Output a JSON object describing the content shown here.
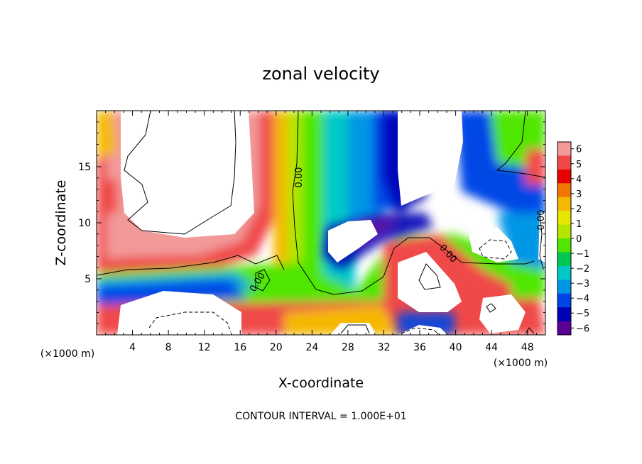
{
  "chart_data": {
    "type": "heatmap",
    "title": "zonal velocity",
    "xlabel": "X-coordinate",
    "ylabel": "Z-coordinate",
    "x_unit": "(×1000 m)",
    "y_unit": "(×1000 m)",
    "xlim": [
      0,
      50
    ],
    "ylim": [
      0,
      20
    ],
    "x_ticks": [
      4,
      8,
      12,
      16,
      20,
      24,
      28,
      32,
      36,
      40,
      44,
      48
    ],
    "y_ticks": [
      5,
      10,
      15
    ],
    "colorbar": {
      "range": [
        -6,
        6
      ],
      "labels": [
        6,
        5,
        4,
        3,
        2,
        1,
        0,
        -1,
        -2,
        -3,
        -4,
        -5,
        -6
      ],
      "colors": [
        "#f29a9a",
        "#f04848",
        "#e80000",
        "#f07800",
        "#f5b800",
        "#e6e600",
        "#b4e600",
        "#50e600",
        "#00c850",
        "#00c8c8",
        "#0096e6",
        "#0046e6",
        "#0000b4",
        "#5a0096"
      ]
    },
    "contour_labels": [
      "0.00",
      "0.00",
      "0.00",
      "0.00"
    ],
    "footnote": "CONTOUR INTERVAL = 1.000E+01",
    "white_regions": "values outside colour range (|u| > 6)"
  }
}
